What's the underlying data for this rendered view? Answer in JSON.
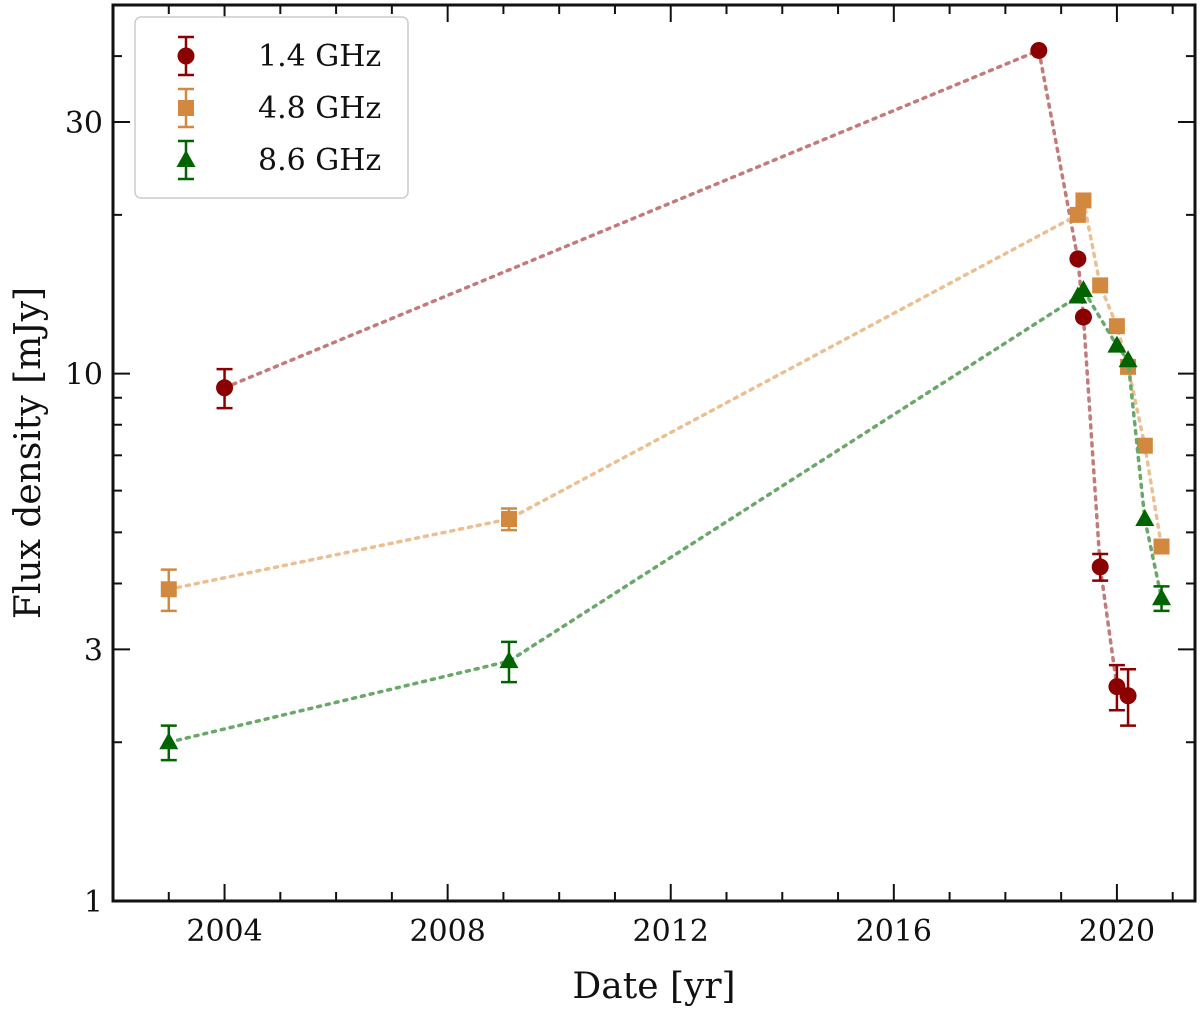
{
  "chart_data": {
    "type": "scatter",
    "title": "",
    "xlabel": "Date [yr]",
    "ylabel": "Flux density [mJy]",
    "xlim": [
      2002.0,
      2021.4
    ],
    "ylim": [
      1,
      50
    ],
    "yscale": "log",
    "grid": false,
    "legend_position": "top-left",
    "x_ticks": [
      2004,
      2008,
      2012,
      2016,
      2020
    ],
    "x_tick_labels": [
      "2004",
      "2008",
      "2012",
      "2016",
      "2020"
    ],
    "y_ticks": [
      1,
      3,
      10,
      30
    ],
    "y_tick_labels": [
      "1",
      "3",
      "10",
      "30"
    ],
    "series": [
      {
        "name": "1.4 GHz",
        "marker": "circle",
        "color": "#8b0000",
        "line_color": "#c47a7a",
        "x": [
          2004.0,
          2018.6,
          2019.3,
          2019.4,
          2019.7,
          2020.0,
          2020.2
        ],
        "y": [
          9.4,
          41.0,
          16.5,
          12.8,
          4.3,
          2.55,
          2.45
        ],
        "err": [
          0.8,
          0.0,
          0.0,
          0.0,
          0.25,
          0.25,
          0.3
        ]
      },
      {
        "name": "4.8 GHz",
        "marker": "square",
        "color": "#d2883f",
        "line_color": "#ebbf92",
        "x": [
          2003.0,
          2009.1,
          2019.3,
          2019.4,
          2019.7,
          2020.0,
          2020.2,
          2020.5,
          2020.8
        ],
        "y": [
          3.9,
          5.3,
          20.0,
          21.3,
          14.7,
          12.3,
          10.3,
          7.3,
          4.7
        ],
        "err": [
          0.35,
          0.25,
          0.0,
          0.0,
          0.0,
          0.0,
          0.0,
          0.0,
          0.0
        ]
      },
      {
        "name": "8.6 GHz",
        "marker": "triangle",
        "color": "#006400",
        "line_color": "#6aa86a",
        "x": [
          2003.0,
          2009.1,
          2019.3,
          2019.4,
          2020.0,
          2020.2,
          2020.5,
          2020.8
        ],
        "y": [
          2.0,
          2.85,
          14.0,
          14.4,
          11.3,
          10.6,
          5.3,
          3.75
        ],
        "err": [
          0.15,
          0.25,
          0.0,
          0.0,
          0.0,
          0.0,
          0.0,
          0.2
        ]
      }
    ]
  }
}
